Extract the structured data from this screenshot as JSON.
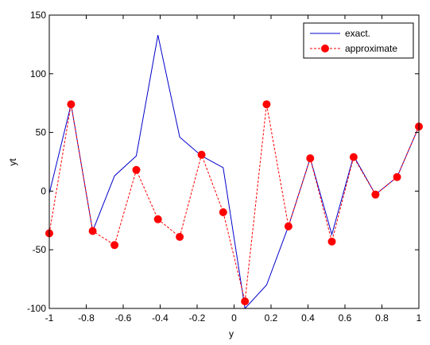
{
  "colors": {
    "background": "#ffffff",
    "axes": "#000000",
    "exact": "#0000cc",
    "approximate": "#ff0000"
  },
  "chart_data": {
    "type": "line",
    "title": "",
    "xlabel": "y",
    "ylabel": "yt",
    "xlim": [
      -1,
      1
    ],
    "ylim": [
      -100,
      150
    ],
    "grid": false,
    "legend_position": "top-right",
    "x_ticks": [
      -1,
      -0.8,
      -0.6,
      -0.4,
      -0.2,
      0,
      0.2,
      0.4,
      0.6,
      0.8,
      1
    ],
    "x_tick_labels": [
      "-1",
      "-0.8",
      "-0.6",
      "-0.4",
      "-0.2",
      "0",
      "0.2",
      "0.4",
      "0.6",
      "0.8",
      "1"
    ],
    "y_ticks": [
      -100,
      -50,
      0,
      50,
      100,
      150
    ],
    "y_tick_labels": [
      "-100",
      "-50",
      "0",
      "50",
      "100",
      "150"
    ],
    "series": [
      {
        "name": "exact.",
        "style": "solid",
        "marker": "none",
        "x": [
          -1,
          -0.882,
          -0.765,
          -0.647,
          -0.529,
          -0.412,
          -0.294,
          -0.176,
          -0.059,
          0.059,
          0.176,
          0.294,
          0.412,
          0.529,
          0.647,
          0.765,
          0.882,
          1
        ],
        "y": [
          -2,
          74,
          -34,
          13,
          30,
          133,
          46,
          30,
          20,
          -100,
          -80,
          -30,
          28,
          -37,
          30,
          -3,
          12,
          55
        ]
      },
      {
        "name": "approximate",
        "style": "dashed",
        "marker": "circle",
        "x": [
          -1,
          -0.882,
          -0.765,
          -0.647,
          -0.529,
          -0.412,
          -0.294,
          -0.176,
          -0.059,
          0.059,
          0.176,
          0.294,
          0.412,
          0.529,
          0.647,
          0.765,
          0.882,
          1
        ],
        "y": [
          -36,
          74,
          -34,
          -46,
          18,
          -24,
          -39,
          31,
          -18,
          -94,
          74,
          -30,
          28,
          -43,
          29,
          -3,
          12,
          55
        ]
      }
    ]
  }
}
